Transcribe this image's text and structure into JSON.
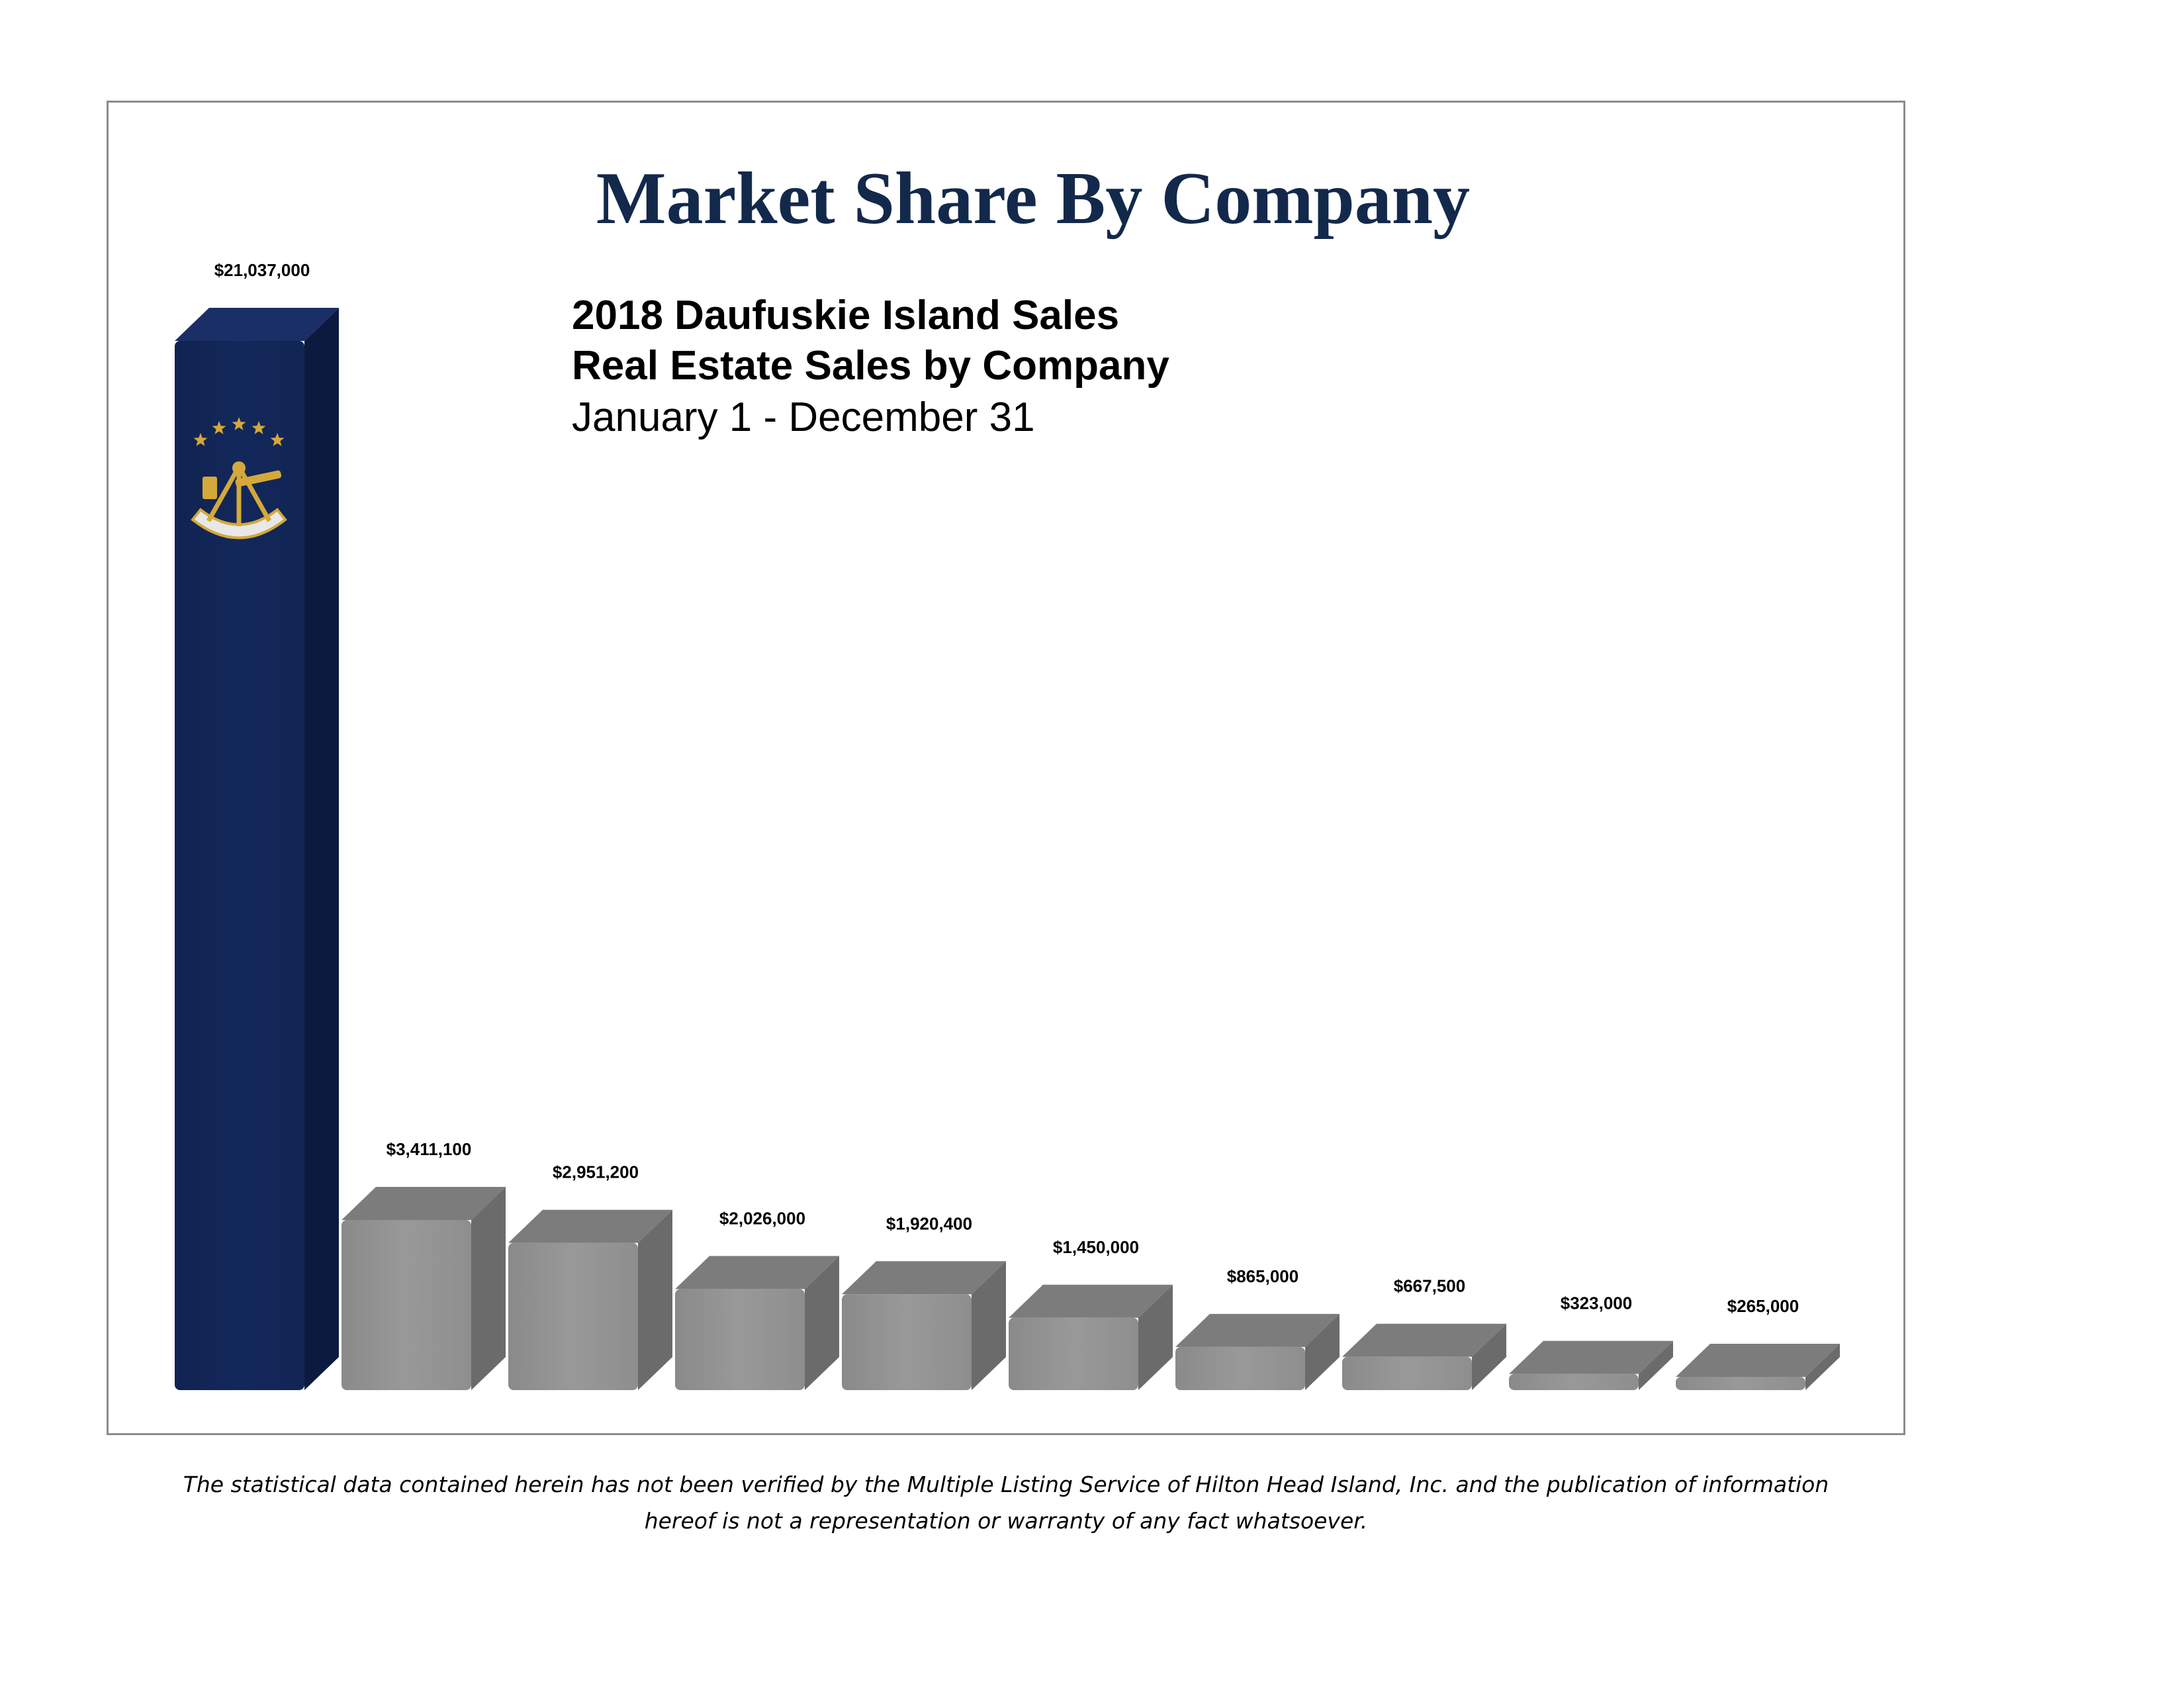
{
  "chart_data": {
    "type": "bar",
    "title": "Market Share By Company",
    "subtitle_lines": [
      "2018 Daufuskie Island Sales",
      "Real Estate Sales by Company",
      "January 1 - December 31"
    ],
    "categories": [
      "",
      "",
      "",
      "",
      "",
      "",
      "",
      "",
      "",
      ""
    ],
    "values": [
      21037000,
      3411100,
      2951200,
      2026000,
      1920400,
      1450000,
      865000,
      667500,
      323000,
      265000
    ],
    "value_labels": [
      "$21,037,000",
      "$3,411,100",
      "$2,951,200",
      "$2,026,000",
      "$1,920,400",
      "$1,450,000",
      "$865,000",
      "$667,500",
      "$323,000",
      "$265,000"
    ],
    "highlight_index": 0,
    "ylim": [
      0,
      21037000
    ],
    "grid": false,
    "legend": "none",
    "xlabel": "",
    "ylabel": ""
  },
  "colors": {
    "title": "#13294b",
    "highlight_bar": "#13285a",
    "highlight_side": "#0b1a3e",
    "bar_front": "#999999",
    "bar_top": "#7c7c7c",
    "bar_side": "#6b6b6b",
    "frame": "#8c8c8c",
    "logo_gold": "#d4a93a"
  },
  "icons": {
    "logo": "sextant-stars-logo-icon"
  },
  "disclaimer": {
    "line1": "The statistical data contained herein has not been verified by the Multiple Listing Service of Hilton Head Island, Inc. and the publication of information",
    "line2": "hereof is not a representation or warranty of any fact whatsoever."
  }
}
